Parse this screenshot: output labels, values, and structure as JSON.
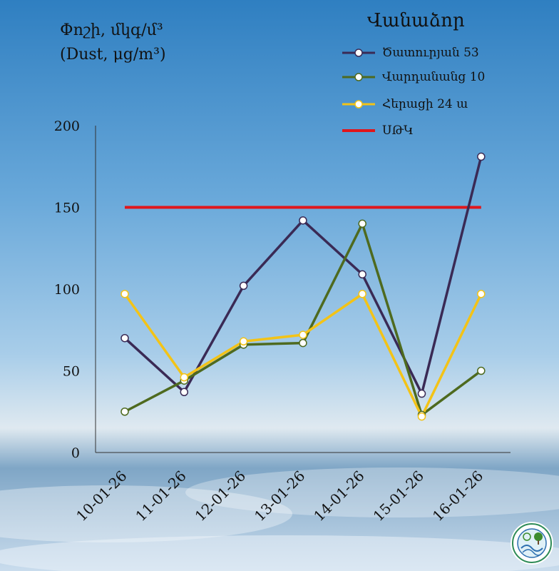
{
  "header": {
    "ylabel_line1": "Փոշի, մկգ/մ³",
    "ylabel_line2": "(Dust, μg/m³)"
  },
  "legend": {
    "title": "Վանաձոր",
    "items": [
      {
        "label": "Ծատուրյան 53",
        "color": "#3a2a55"
      },
      {
        "label": "Վարդանանց 10",
        "color": "#4e6a1f"
      },
      {
        "label": "Հերացի 24 ա",
        "color": "#f3c317"
      },
      {
        "label": "ՍԹԿ",
        "color": "#e0161b"
      }
    ]
  },
  "chart_data": {
    "type": "line",
    "categories": [
      "10-01-26",
      "11-01-26",
      "12-01-26",
      "13-01-26",
      "14-01-26",
      "15-01-26",
      "16-01-26"
    ],
    "ylim": [
      0,
      200
    ],
    "yticks": [
      0,
      50,
      100,
      150,
      200
    ],
    "grid": false,
    "legend_position": "top-right",
    "series": [
      {
        "name": "Ծատուրյան 53",
        "color": "#3a2a55",
        "values": [
          70,
          37,
          102,
          142,
          109,
          36,
          181
        ]
      },
      {
        "name": "Վարդանանց 10",
        "color": "#4e6a1f",
        "values": [
          25,
          44,
          66,
          67,
          140,
          23,
          50
        ]
      },
      {
        "name": "Հերացի 24 ա",
        "color": "#f3c317",
        "values": [
          97,
          46,
          68,
          72,
          97,
          22,
          97
        ]
      }
    ],
    "threshold": {
      "name": "ՍԹԿ",
      "value": 150,
      "color": "#e0161b"
    }
  }
}
